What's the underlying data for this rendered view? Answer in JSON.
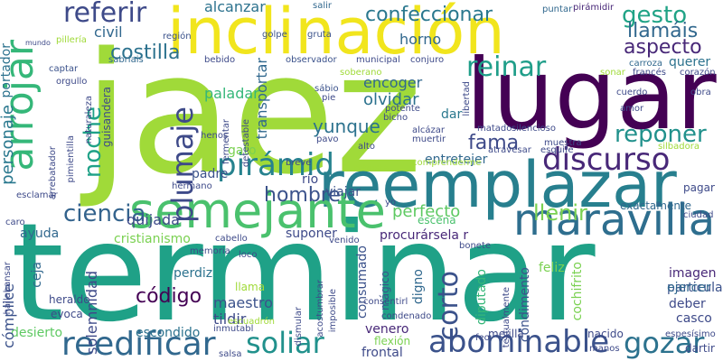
{
  "words": {
    "terminar": "terminar",
    "jaez": "jaez",
    "lugar": "lugar",
    "inclinacion": "inclinación",
    "reemplazar": "reemplazar",
    "semejante": "semejante",
    "maravilla": "maravilla",
    "abominable": "abominable",
    "reedificar": "reedificar",
    "arrojar": "arrojar",
    "discurso": "discurso",
    "piramid": "pirámid",
    "plumaje": "plumaje",
    "reinar": "reinar",
    "gozar": "gozar",
    "soliar": "soliar",
    "ciencia": "ciencia",
    "referir": "referir",
    "confeccionar": "confeccionar",
    "gesto": "gesto",
    "llamais": "llamáis",
    "aspecto": "aspecto",
    "reponer": "reponer",
    "corto": "corto",
    "noche": "noche",
    "costilla": "costilla",
    "fama": "fama",
    "yunque": "yunque",
    "hombre": "hombre",
    "perfecto": "perfecto",
    "llenir": "llenir",
    "codigo": "código",
    "personaje": "personaje",
    "cristianismo": "cristianismo",
    "quijada": "quijada",
    "alcanzar": "alcanzar",
    "civil": "civil",
    "portador": "portador",
    "solemnidad": "solemnidad",
    "paladar": "paladar",
    "transportar": "transportar",
    "encoger": "encoger",
    "olvidar": "olvidar",
    "horno": "horno",
    "maestro": "maestro",
    "tildir": "tildir",
    "escondido": "escondido",
    "desierto": "desierto",
    "complice": "cómplice",
    "perdiz": "perdiz",
    "llama": "llama",
    "digno": "digno",
    "diputado": "diputado",
    "particular": "particular",
    "ejercer": "ejercer",
    "imagen": "imagen",
    "deber": "deber",
    "casco": "casco",
    "exactamente": "exactamente",
    "pagar": "pagar",
    "suponer": "suponer",
    "procurarselar": "procurársela r",
    "rio": "río",
    "viajar": "viajar",
    "padre": "padre",
    "gato": "gato",
    "entretejer": "entretejer",
    "dar": "dar",
    "ayuda": "ayuda",
    "ceja": "ceja",
    "heraldo": "heraldo",
    "evoca": "evoca",
    "venero": "venero",
    "flexion": "flexión",
    "frontal": "frontal",
    "mejilla": "mejilla",
    "nacido": "nacido",
    "manos": "manos",
    "feliz": "feliz",
    "condimento": "condimento",
    "cochifrito": "cochifrito",
    "consumado": "consumado",
    "magico": "mágico",
    "escena": "escena",
    "quijote": "queixal",
    "querer": "querer",
    "carroza": "carroza",
    "puntar": "puntar",
    "piramidir": "pirámidir",
    "salir": "salir",
    "golpe": "golpe",
    "gruta": "gruta",
    "region": "región",
    "sabriais": "sabriais",
    "bebido": "bebido",
    "observador": "observador",
    "municipal": "municipal",
    "conjuro": "conjuro",
    "captar": "captar",
    "orgullo": "orgullo",
    "pilleria": "pillería",
    "frances": "francés",
    "corazon": "corazón",
    "cuerdo": "cuerdo",
    "obra": "obra",
    "amor": "amor",
    "sabio": "sábio",
    "pie": "pie",
    "bicho": "bicho",
    "pavo": "pavo",
    "alto": "alto",
    "henos": "henos",
    "alcazar": "alcázar",
    "muertir": "muertir",
    "silencioso": "silencioso",
    "matado": "matado",
    "muestra": "muestra",
    "atravesar": "atravesar",
    "esquife": "esquife",
    "comprenderme": "comprenderme",
    "breve": "breve",
    "robusta": "robusta",
    "hermano": "hermano",
    "cabello": "cabello",
    "memoria": "memoria",
    "esclamar": "esclamar",
    "arrebatador": "arrebatador",
    "guisandera": "guisandera",
    "pimientilla": "pimientilla",
    "naturaleza": "naturaleza",
    "fermentar": "fermentar",
    "detestable": "detestable",
    "sonar": "sonar",
    "soberano": "soberano",
    "libertad": "libertad",
    "potente": "potente",
    "caro": "caro",
    "venido": "venido",
    "bonete": "bonete",
    "loco": "loco",
    "hallabansar": "hallabansar",
    "escuadron": "escuadrón",
    "inmutabl": "inmutabl",
    "acostumbrar": "acostumbrar",
    "imposible": "imposible",
    "consentirl": "consentirl",
    "condenado": "condenado",
    "dismular": "dismular",
    "textualmente": "textualmente",
    "feo": "feo",
    "espesisimo": "espesísimo",
    "salsa": "salsa",
    "dartir": "dartir",
    "silbadora": "silbadora",
    "ciudad": "ciudad",
    "yo": "yo",
    "mundo": "mundo"
  }
}
